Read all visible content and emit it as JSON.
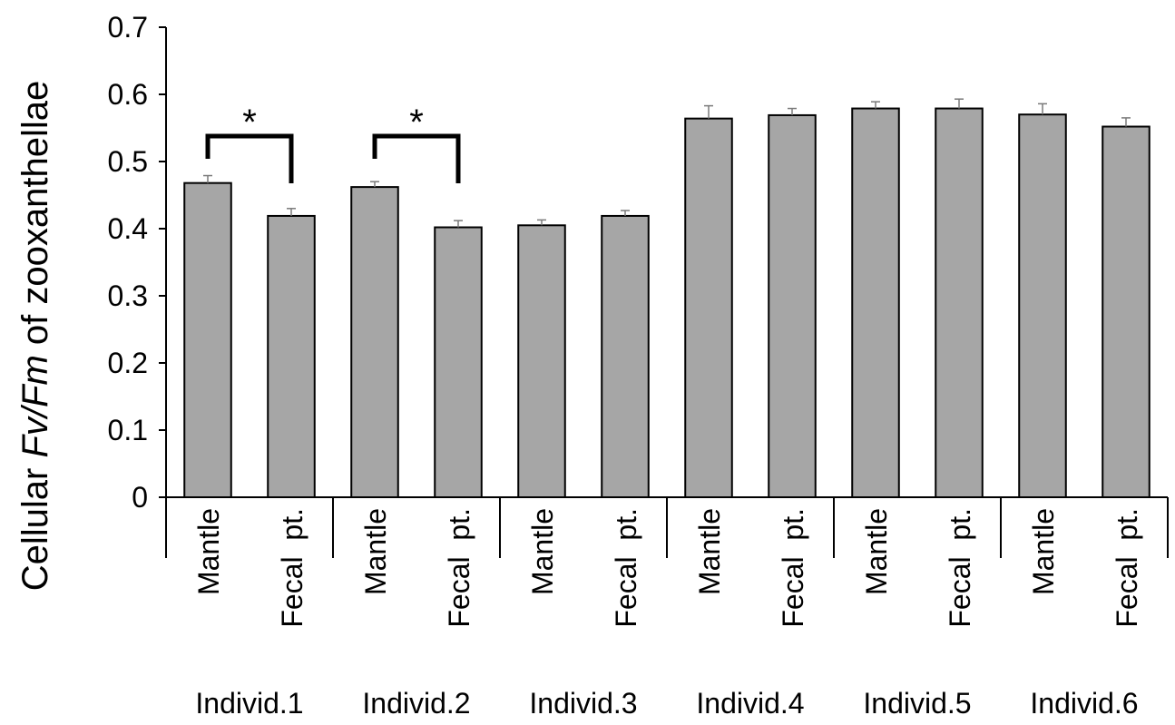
{
  "chart_data": {
    "type": "bar",
    "ylabel": {
      "prefix": "Cellular ",
      "italic": "Fv/Fm",
      "suffix": " of zooxanthellae"
    },
    "ylim": [
      0,
      0.7
    ],
    "yticks": [
      "0",
      "0.1",
      "0.2",
      "0.3",
      "0.4",
      "0.5",
      "0.6",
      "0.7"
    ],
    "ytick_values": [
      0,
      0.1,
      0.2,
      0.3,
      0.4,
      0.5,
      0.6,
      0.7
    ],
    "grid": false,
    "bar_color": "#a6a6a6",
    "groups": [
      {
        "label": "Individ.1",
        "bars": [
          {
            "category": "Mantle",
            "value": 0.468,
            "error": 0.011
          },
          {
            "category": "Fecal  pt.",
            "value": 0.419,
            "error": 0.011
          }
        ],
        "significance": "*"
      },
      {
        "label": "Individ.2",
        "bars": [
          {
            "category": "Mantle",
            "value": 0.462,
            "error": 0.008
          },
          {
            "category": "Fecal  pt.",
            "value": 0.402,
            "error": 0.01
          }
        ],
        "significance": "*"
      },
      {
        "label": "Individ.3",
        "bars": [
          {
            "category": "Mantle",
            "value": 0.405,
            "error": 0.008
          },
          {
            "category": "Fecal  pt.",
            "value": 0.419,
            "error": 0.008
          }
        ]
      },
      {
        "label": "Individ.4",
        "bars": [
          {
            "category": "Mantle",
            "value": 0.564,
            "error": 0.019
          },
          {
            "category": "Fecal  pt.",
            "value": 0.569,
            "error": 0.01
          }
        ]
      },
      {
        "label": "Individ.5",
        "bars": [
          {
            "category": "Mantle",
            "value": 0.579,
            "error": 0.01
          },
          {
            "category": "Fecal  pt.",
            "value": 0.579,
            "error": 0.014
          }
        ]
      },
      {
        "label": "Individ.6",
        "bars": [
          {
            "category": "Mantle",
            "value": 0.57,
            "error": 0.016
          },
          {
            "category": "Fecal  pt.",
            "value": 0.552,
            "error": 0.013
          }
        ]
      }
    ]
  }
}
